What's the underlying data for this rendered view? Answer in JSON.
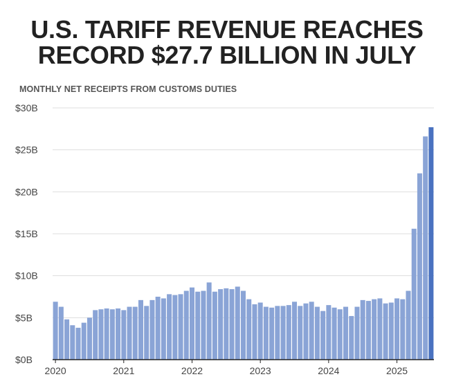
{
  "title_line1": "U.S. TARIFF REVENUE REACHES",
  "title_line2": "RECORD $27.7 BILLION IN JULY",
  "subtitle": "MONTHLY NET RECEIPTS FROM CUSTOMS DUTIES",
  "colors": {
    "bar": "#8aa4d6",
    "bar_highlight": "#4a72c0",
    "grid": "#dddddd",
    "axis": "#222222"
  },
  "chart_data": {
    "type": "bar",
    "title": "U.S. TARIFF REVENUE REACHES RECORD $27.7 BILLION IN JULY",
    "subtitle": "MONTHLY NET RECEIPTS FROM CUSTOMS DUTIES",
    "xlabel": "",
    "ylabel": "",
    "ylim": [
      0,
      30
    ],
    "unit": "billion USD",
    "grid": true,
    "y_ticks": [
      {
        "value": 0,
        "label": "$0B"
      },
      {
        "value": 5,
        "label": "$5B"
      },
      {
        "value": 10,
        "label": "$10B"
      },
      {
        "value": 15,
        "label": "$15B"
      },
      {
        "value": 20,
        "label": "$20B"
      },
      {
        "value": 25,
        "label": "$25B"
      },
      {
        "value": 30,
        "label": "$30B"
      }
    ],
    "x_ticks": [
      {
        "index": 0,
        "label": "2020"
      },
      {
        "index": 12,
        "label": "2021"
      },
      {
        "index": 24,
        "label": "2022"
      },
      {
        "index": 36,
        "label": "2023"
      },
      {
        "index": 48,
        "label": "2024"
      },
      {
        "index": 60,
        "label": "2025"
      }
    ],
    "categories": [
      "2020-01",
      "2020-02",
      "2020-03",
      "2020-04",
      "2020-05",
      "2020-06",
      "2020-07",
      "2020-08",
      "2020-09",
      "2020-10",
      "2020-11",
      "2020-12",
      "2021-01",
      "2021-02",
      "2021-03",
      "2021-04",
      "2021-05",
      "2021-06",
      "2021-07",
      "2021-08",
      "2021-09",
      "2021-10",
      "2021-11",
      "2021-12",
      "2022-01",
      "2022-02",
      "2022-03",
      "2022-04",
      "2022-05",
      "2022-06",
      "2022-07",
      "2022-08",
      "2022-09",
      "2022-10",
      "2022-11",
      "2022-12",
      "2023-01",
      "2023-02",
      "2023-03",
      "2023-04",
      "2023-05",
      "2023-06",
      "2023-07",
      "2023-08",
      "2023-09",
      "2023-10",
      "2023-11",
      "2023-12",
      "2024-01",
      "2024-02",
      "2024-03",
      "2024-04",
      "2024-05",
      "2024-06",
      "2024-07",
      "2024-08",
      "2024-09",
      "2024-10",
      "2024-11",
      "2024-12",
      "2025-01",
      "2025-02",
      "2025-03",
      "2025-04",
      "2025-05",
      "2025-06",
      "2025-07"
    ],
    "values": [
      6.9,
      6.3,
      4.8,
      4.1,
      3.8,
      4.4,
      5.0,
      5.9,
      6.0,
      6.1,
      6.0,
      6.1,
      5.9,
      6.3,
      6.3,
      7.1,
      6.4,
      7.1,
      7.5,
      7.3,
      7.8,
      7.7,
      7.8,
      8.2,
      8.6,
      8.1,
      8.2,
      9.2,
      8.1,
      8.4,
      8.5,
      8.4,
      8.7,
      8.2,
      7.2,
      6.6,
      6.8,
      6.3,
      6.2,
      6.4,
      6.4,
      6.5,
      6.9,
      6.4,
      6.7,
      6.9,
      6.3,
      5.8,
      6.5,
      6.2,
      6.0,
      6.3,
      5.2,
      6.3,
      7.1,
      7.0,
      7.2,
      7.3,
      6.7,
      6.8,
      7.3,
      7.2,
      8.2,
      15.6,
      22.2,
      26.6,
      27.7
    ],
    "highlight_index": 66
  }
}
